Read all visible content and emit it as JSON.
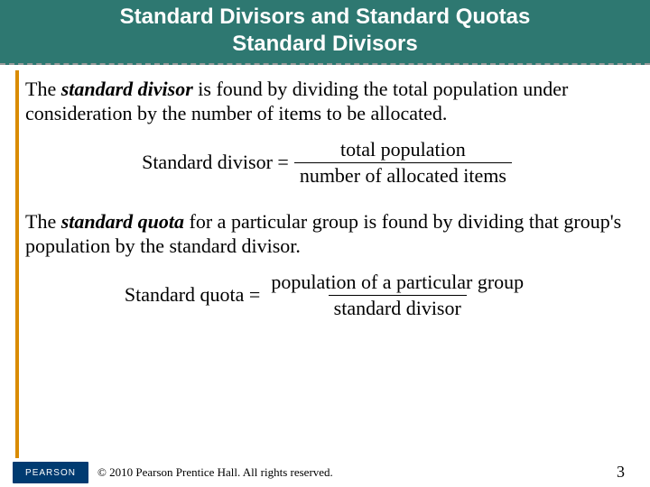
{
  "header": {
    "line1": "Standard Divisors and Standard Quotas",
    "line2": "Standard Divisors",
    "bg_color": "#2e7871",
    "text_color": "#ffffff",
    "font_size": 24,
    "dashed_border_color": "#999999"
  },
  "accent_bar_color": "#d98b00",
  "paragraph1": {
    "prefix": "The ",
    "term": "standard divisor",
    "rest": " is found by dividing the total population under consideration by the number of items to be allocated."
  },
  "formula1": {
    "lhs": "Standard divisor = ",
    "numerator": "total population",
    "denominator": "number of allocated items"
  },
  "paragraph2": {
    "prefix": "The ",
    "term": "standard quota",
    "rest": " for a particular group is found by dividing  that group's population by the standard divisor."
  },
  "formula2": {
    "lhs": "Standard quota = ",
    "numerator": "population of a particular group",
    "denominator": "standard divisor"
  },
  "footer": {
    "logo_text": "PEARSON",
    "logo_bg": "#003b71",
    "copyright": "© 2010 Pearson Prentice Hall. All rights reserved.",
    "page_number": "3"
  },
  "body_font_size": 22,
  "formula_font_size": 22
}
